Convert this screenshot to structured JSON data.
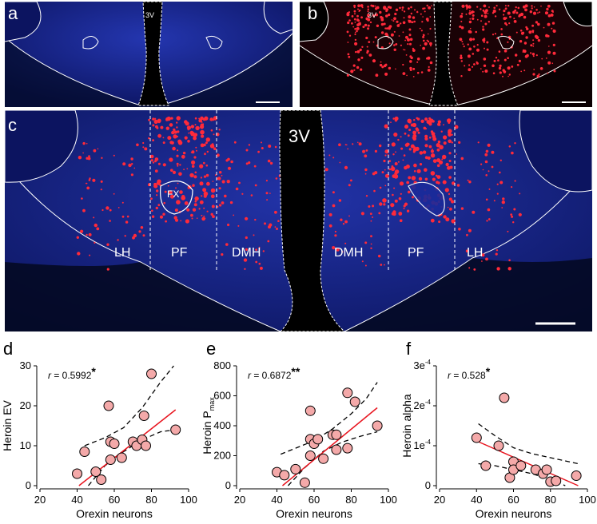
{
  "panels": {
    "a": {
      "label": "a",
      "region": "3V"
    },
    "b": {
      "label": "b",
      "region": "3V"
    },
    "c": {
      "label": "c",
      "regions": [
        "LH",
        "PF",
        "DMH",
        "DMH",
        "PF",
        "LH"
      ],
      "ventricle": "3V",
      "fornix": "FX"
    }
  },
  "colors": {
    "tissue": "#1a2a9a",
    "tissue_dark": "#0a0f40",
    "neuron": "#ff2a3a",
    "point_fill": "#f4a9a9",
    "fit_line": "#e8141e",
    "ci_line": "#000000"
  },
  "chart_data": [
    {
      "panel": "d",
      "type": "scatter",
      "xlabel": "Orexin neurons",
      "ylabel": "Heroin EV",
      "annotation": {
        "r_label": "r",
        "value": " = 0.5992",
        "sig": "*"
      },
      "xlim": [
        20,
        100
      ],
      "ylim": [
        0,
        30
      ],
      "xticks": [
        "20",
        "40",
        "60",
        "80",
        "100"
      ],
      "yticks": [
        "0",
        "10",
        "20",
        "30"
      ],
      "points": [
        [
          40,
          3
        ],
        [
          44,
          8.5
        ],
        [
          50,
          3.5
        ],
        [
          53,
          1.5
        ],
        [
          57,
          20
        ],
        [
          58,
          11
        ],
        [
          58,
          6.5
        ],
        [
          60,
          10.5
        ],
        [
          64,
          7
        ],
        [
          70,
          11
        ],
        [
          72,
          10
        ],
        [
          75,
          11.5
        ],
        [
          76,
          17.5
        ],
        [
          80,
          28
        ],
        [
          77,
          10
        ],
        [
          93,
          14
        ]
      ],
      "fit": [
        [
          41,
          0
        ],
        [
          93,
          19
        ]
      ],
      "ci_upper": [
        [
          44,
          10
        ],
        [
          55,
          12
        ],
        [
          65,
          14.5
        ],
        [
          75,
          19.5
        ],
        [
          85,
          26
        ],
        [
          92,
          30
        ]
      ],
      "ci_lower": [
        [
          46,
          0
        ],
        [
          55,
          5
        ],
        [
          65,
          8.5
        ],
        [
          75,
          11.5
        ],
        [
          85,
          13.5
        ],
        [
          93,
          14
        ]
      ]
    },
    {
      "panel": "e",
      "type": "scatter",
      "xlabel": "Orexin neurons",
      "ylabel_main": "Heroin P",
      "ylabel_sub": "max",
      "annotation": {
        "r_label": "r",
        "value": " = 0.6872",
        "sig": "**"
      },
      "xlim": [
        20,
        100
      ],
      "ylim": [
        0,
        800
      ],
      "xticks": [
        "20",
        "40",
        "60",
        "80",
        "100"
      ],
      "yticks": [
        "0",
        "200",
        "400",
        "600",
        "800"
      ],
      "points": [
        [
          40,
          90
        ],
        [
          44,
          70
        ],
        [
          50,
          110
        ],
        [
          55,
          20
        ],
        [
          58,
          310
        ],
        [
          58,
          500
        ],
        [
          58,
          200
        ],
        [
          60,
          280
        ],
        [
          62,
          310
        ],
        [
          65,
          180
        ],
        [
          70,
          340
        ],
        [
          72,
          340
        ],
        [
          72,
          240
        ],
        [
          78,
          250
        ],
        [
          78,
          620
        ],
        [
          82,
          560
        ],
        [
          94,
          400
        ]
      ],
      "fit": [
        [
          43,
          0
        ],
        [
          94,
          520
        ]
      ],
      "ci_upper": [
        [
          42,
          210
        ],
        [
          50,
          250
        ],
        [
          60,
          300
        ],
        [
          70,
          380
        ],
        [
          80,
          480
        ],
        [
          88,
          580
        ],
        [
          94,
          690
        ]
      ],
      "ci_lower": [
        [
          46,
          0
        ],
        [
          55,
          120
        ],
        [
          65,
          230
        ],
        [
          75,
          290
        ],
        [
          85,
          330
        ],
        [
          94,
          360
        ]
      ]
    },
    {
      "panel": "f",
      "type": "scatter",
      "xlabel": "Orexin neurons",
      "ylabel": "Heroin alpha",
      "annotation": {
        "r_label": "r",
        "value": " = 0.528",
        "sig": "*"
      },
      "xlim": [
        20,
        100
      ],
      "ylim": [
        0,
        0.0003
      ],
      "xticks": [
        "20",
        "40",
        "60",
        "80",
        "100"
      ],
      "yticks": [
        "0",
        "1e",
        "2e",
        "3e"
      ],
      "ytick_exp": "-4",
      "points": [
        [
          40,
          0.00012
        ],
        [
          45,
          5e-05
        ],
        [
          52,
          0.0001
        ],
        [
          55,
          0.00022
        ],
        [
          58,
          2e-05
        ],
        [
          60,
          6e-05
        ],
        [
          60,
          4e-05
        ],
        [
          64,
          5e-05
        ],
        [
          72,
          4e-05
        ],
        [
          76,
          3e-05
        ],
        [
          78,
          4e-05
        ],
        [
          80,
          1e-05
        ],
        [
          83,
          1.2e-05
        ],
        [
          94,
          2.5e-05
        ]
      ],
      "fit": [
        [
          41,
          0.00011
        ],
        [
          95,
          0
        ]
      ],
      "ci_upper": [
        [
          41,
          0.000155
        ],
        [
          50,
          0.000125
        ],
        [
          60,
          9.5e-05
        ],
        [
          70,
          8e-05
        ],
        [
          80,
          7e-05
        ],
        [
          95,
          5.5e-05
        ]
      ],
      "ci_lower": [
        [
          41,
          5.5e-05
        ],
        [
          50,
          5e-05
        ],
        [
          60,
          4e-05
        ],
        [
          70,
          3e-05
        ],
        [
          80,
          1.5e-05
        ],
        [
          88,
          0
        ]
      ]
    }
  ]
}
